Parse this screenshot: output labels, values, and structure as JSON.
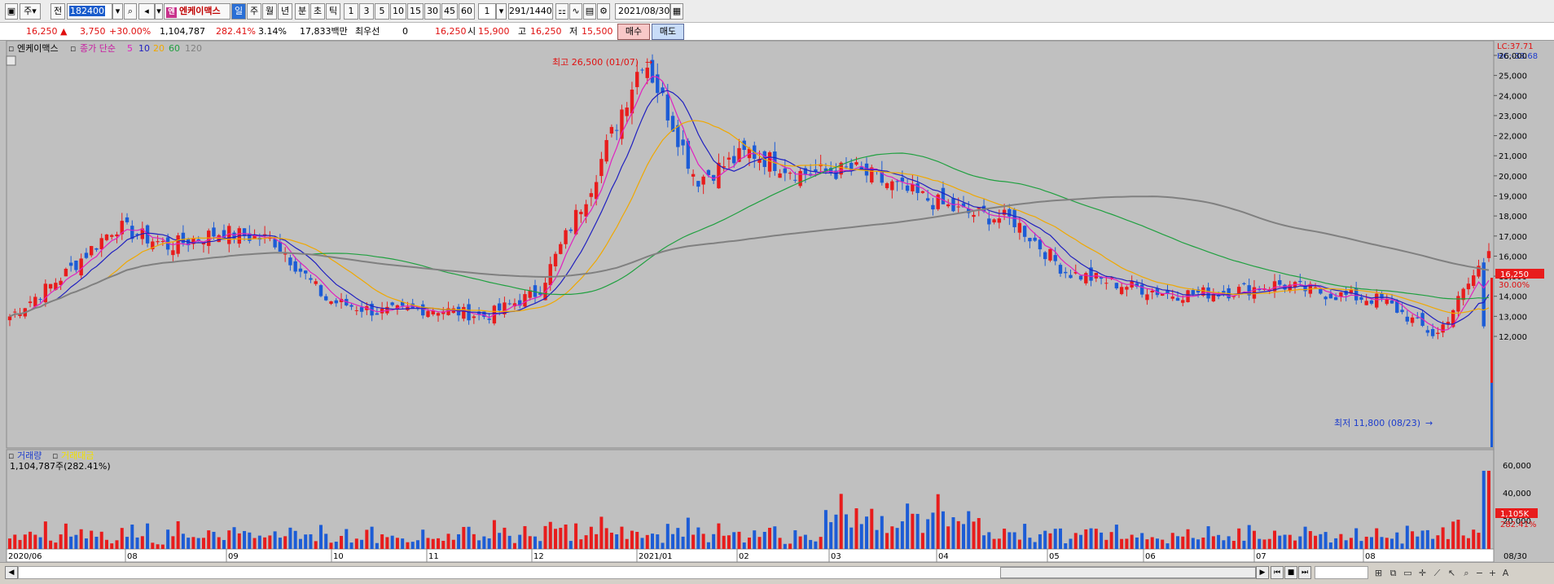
{
  "toolbar": {
    "period_prefix": "주",
    "all_label": "전",
    "code": "182400",
    "stock_name": "엔케이맥스",
    "stock_logo": "엔",
    "tabs": [
      "일",
      "주",
      "월",
      "년",
      "분",
      "초",
      "틱"
    ],
    "selected_tab": "일",
    "intervals": [
      "1",
      "3",
      "5",
      "10",
      "15",
      "30",
      "45",
      "60"
    ],
    "unit_value": "1",
    "counter": "291/1440",
    "date": "2021/08/30"
  },
  "info": {
    "price": "16,250",
    "change": "3,750",
    "change_pct": "+30.00%",
    "volume": "1,104,787",
    "volume_ratio": "282.41%",
    "turnover": "3.14%",
    "amount": "17,833백만",
    "pref_label": "최우선",
    "pref_value": "0",
    "pref_price": "16,250",
    "open_label": "시",
    "open": "15,900",
    "high_label": "고",
    "high": "16,250",
    "low_label": "저",
    "low": "15,500",
    "buy_label": "매수",
    "sell_label": "매도"
  },
  "legend": {
    "stock": "엔케이맥스",
    "ma_label": "종가 단순",
    "ma_periods": [
      "5",
      "10",
      "20",
      "60",
      "120"
    ],
    "ma_colors": [
      "#e020c0",
      "#2020c0",
      "#f0a800",
      "#20a040",
      "#808080"
    ]
  },
  "volume_legend": {
    "volume_label": "거래량",
    "amount_label": "거래대금",
    "value": "1,104,787주(282.41%)"
  },
  "annotations": {
    "high": "최고 26,500 (01/07)",
    "low": "최저 11,800 (08/23)"
  },
  "price_axis": {
    "lc": "LC:37.71",
    "hc": "HC:-38.68",
    "current": "16,250",
    "current_pct": "30.00%",
    "ticks": [
      "26,000",
      "25,000",
      "24,000",
      "23,000",
      "22,000",
      "21,000",
      "20,000",
      "19,000",
      "18,000",
      "17,000",
      "16,000",
      "15,000",
      "14,000",
      "13,000",
      "12,000"
    ]
  },
  "volume_axis": {
    "ticks": [
      "60,000",
      "40,000",
      "20,000"
    ],
    "current": "1,105K",
    "current_pct": "282.41%"
  },
  "date_axis": {
    "labels": [
      "2020/06",
      "08",
      "09",
      "10",
      "11",
      "12",
      "2021/01",
      "02",
      "03",
      "04",
      "05",
      "06",
      "07",
      "08"
    ],
    "right_label": "08/30"
  },
  "colors": {
    "up": "#e81c1c",
    "down": "#1c5cd6",
    "bg": "#c0c0c0"
  },
  "chart_data": {
    "type": "candlestick",
    "title": "엔케이맥스",
    "x_range": [
      "2020/06",
      "2021/08/30"
    ],
    "ylim": [
      11000,
      26500
    ],
    "volume_ylim": [
      0,
      70000
    ],
    "moving_averages": [
      "5",
      "10",
      "20",
      "60",
      "120"
    ],
    "series": [
      {
        "name": "price",
        "points": [
          [
            "2020/06",
            13000
          ],
          [
            "2020/07",
            15000
          ],
          [
            "2020/08",
            17500
          ],
          [
            "2020/08",
            16500
          ],
          [
            "2020/09",
            17200
          ],
          [
            "2020/09",
            16800
          ],
          [
            "2020/10",
            13800
          ],
          [
            "2020/10",
            13200
          ],
          [
            "2020/11",
            13400
          ],
          [
            "2020/11",
            13000
          ],
          [
            "2020/12",
            14200
          ],
          [
            "2020/12",
            19500
          ],
          [
            "2021/01",
            26000
          ],
          [
            "2021/01",
            19800
          ],
          [
            "2021/02",
            21200
          ],
          [
            "2021/02",
            20100
          ],
          [
            "2021/03",
            20300
          ],
          [
            "2021/03",
            19200
          ],
          [
            "2021/04",
            18200
          ],
          [
            "2021/04",
            17800
          ],
          [
            "2021/05",
            15200
          ],
          [
            "2021/05",
            14600
          ],
          [
            "2021/06",
            14100
          ],
          [
            "2021/06",
            14200
          ],
          [
            "2021/07",
            14600
          ],
          [
            "2021/07",
            14100
          ],
          [
            "2021/08",
            13800
          ],
          [
            "2021/08",
            12000
          ],
          [
            "2021/08/30",
            16250
          ]
        ]
      }
    ]
  }
}
